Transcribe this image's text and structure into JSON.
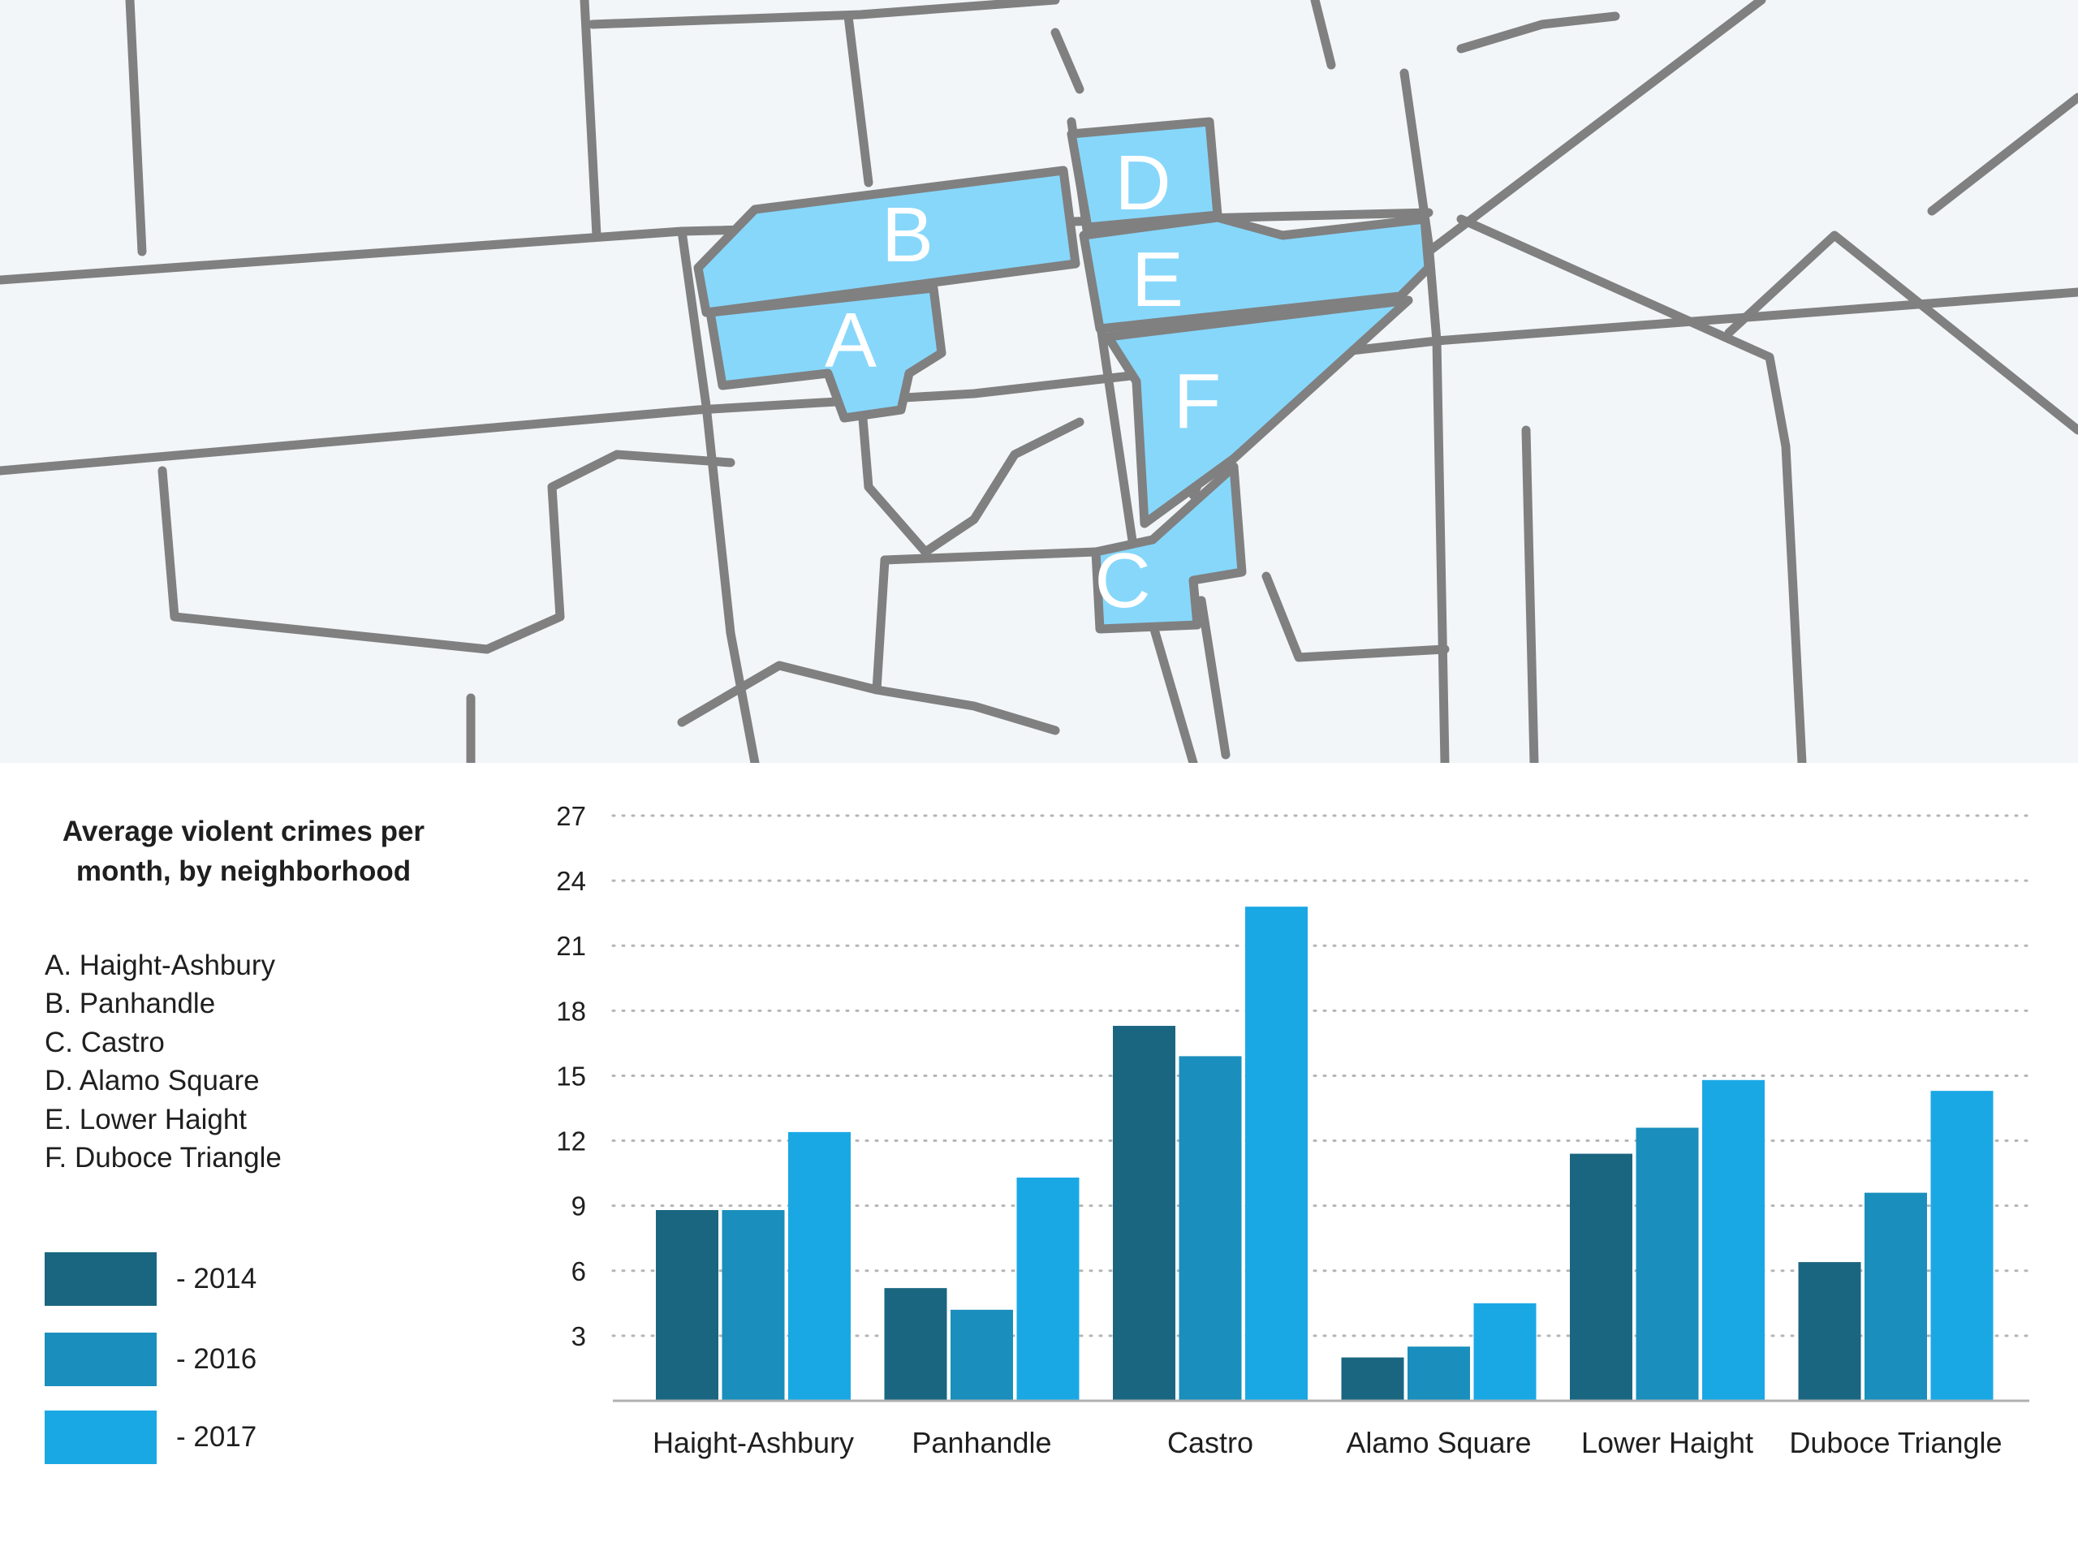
{
  "map": {
    "regions": [
      {
        "letter": "A",
        "name": "Haight-Ashbury"
      },
      {
        "letter": "B",
        "name": "Panhandle"
      },
      {
        "letter": "C",
        "name": "Castro"
      },
      {
        "letter": "D",
        "name": "Alamo Square"
      },
      {
        "letter": "E",
        "name": "Lower Haight"
      },
      {
        "letter": "F",
        "name": "Duboce Triangle"
      }
    ],
    "colors": {
      "background": "#f2f6f9",
      "street": "#808080",
      "highlight": "#87d7fb",
      "label": "#ffffff"
    }
  },
  "legend": {
    "title": "Average violent crimes per month, by neighborhood",
    "items": [
      "A. Haight-Ashbury",
      "B. Panhandle",
      "C. Castro",
      "D. Alamo Square",
      "E. Lower Haight",
      "F. Duboce Triangle"
    ],
    "series": [
      {
        "label": "- 2014",
        "color": "#1a6680"
      },
      {
        "label": "- 2016",
        "color": "#1a8fbd"
      },
      {
        "label": "- 2017",
        "color": "#1aa8e5"
      }
    ]
  },
  "chart_data": {
    "type": "bar",
    "title": "Average violent crimes per month, by neighborhood",
    "xlabel": "",
    "ylabel": "",
    "categories": [
      "Haight-Ashbury",
      "Panhandle",
      "Castro",
      "Alamo Square",
      "Lower Haight",
      "Duboce Triangle"
    ],
    "series": [
      {
        "name": "2014",
        "color": "#1a6680",
        "values": [
          8.8,
          5.2,
          17.3,
          2.0,
          11.4,
          6.4
        ]
      },
      {
        "name": "2016",
        "color": "#1a8fbd",
        "values": [
          8.8,
          4.2,
          15.9,
          2.5,
          12.6,
          9.6
        ]
      },
      {
        "name": "2017",
        "color": "#1aa8e5",
        "values": [
          12.4,
          10.3,
          22.8,
          4.5,
          14.8,
          14.3
        ]
      }
    ],
    "yticks": [
      3,
      6,
      9,
      12,
      15,
      18,
      21,
      24,
      27
    ],
    "ylim": [
      0,
      27
    ],
    "grid": true,
    "legend": "left"
  }
}
